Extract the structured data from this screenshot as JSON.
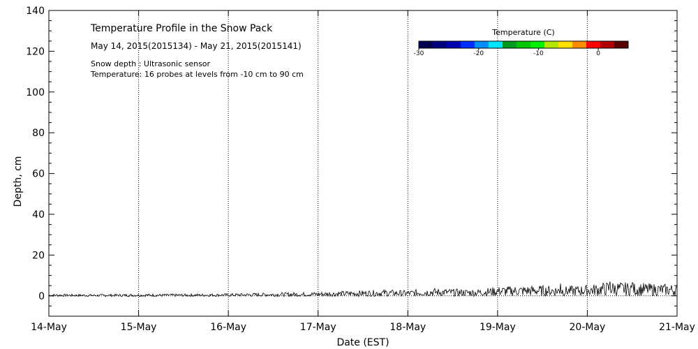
{
  "chart_data": {
    "type": "line",
    "title": "Temperature Profile in the Snow Pack",
    "subtitle": "May 14, 2015(2015134) - May 21, 2015(2015141)",
    "notes": [
      "Snow depth : Ultrasonic sensor",
      "Temperature: 16 probes at levels from -10 cm to 90 cm"
    ],
    "xlabel": "Date (EST)",
    "ylabel": "Depth, cm",
    "x_ticks": [
      "14-May",
      "15-May",
      "16-May",
      "17-May",
      "18-May",
      "19-May",
      "20-May",
      "21-May"
    ],
    "xlim": [
      "14-May",
      "21-May"
    ],
    "ylim": [
      -10,
      140
    ],
    "y_ticks": [
      0,
      20,
      40,
      60,
      80,
      100,
      120,
      140
    ],
    "grid": true,
    "colorbar": {
      "title": "Temperature (C)",
      "tick_labels": [
        "-30",
        "-20",
        "-10",
        "0"
      ],
      "tick_values": [
        -30,
        -20,
        -10,
        0
      ],
      "range": [
        -30,
        5
      ],
      "colors": [
        "#00004f",
        "#00007f",
        "#0000b3",
        "#0030ff",
        "#0090ff",
        "#00e5ff",
        "#009a20",
        "#00c400",
        "#00ee00",
        "#b4e600",
        "#ffe000",
        "#ff8c00",
        "#ff0000",
        "#b00000",
        "#5a0000"
      ]
    },
    "series": [
      {
        "x_days": [
          0.0,
          0.5,
          1.0,
          1.5,
          2.0,
          2.5,
          3.0,
          3.25,
          3.5,
          3.75,
          4.0,
          4.25,
          4.5,
          4.75,
          5.0,
          5.25,
          5.5,
          5.75,
          6.0,
          6.25,
          6.5,
          6.75,
          7.0
        ],
        "values": [
          0.3,
          0.2,
          0.3,
          0.3,
          0.4,
          0.6,
          0.8,
          1.0,
          1.2,
          1.4,
          1.2,
          1.8,
          1.6,
          1.5,
          2.2,
          2.4,
          2.5,
          2.3,
          2.6,
          3.5,
          3.2,
          3.0,
          2.8
        ],
        "noise_peaks": [
          {
            "day": 5.7,
            "value": 6
          },
          {
            "day": 6.25,
            "value": 7
          },
          {
            "day": 6.5,
            "value": 6.5
          }
        ]
      }
    ]
  }
}
